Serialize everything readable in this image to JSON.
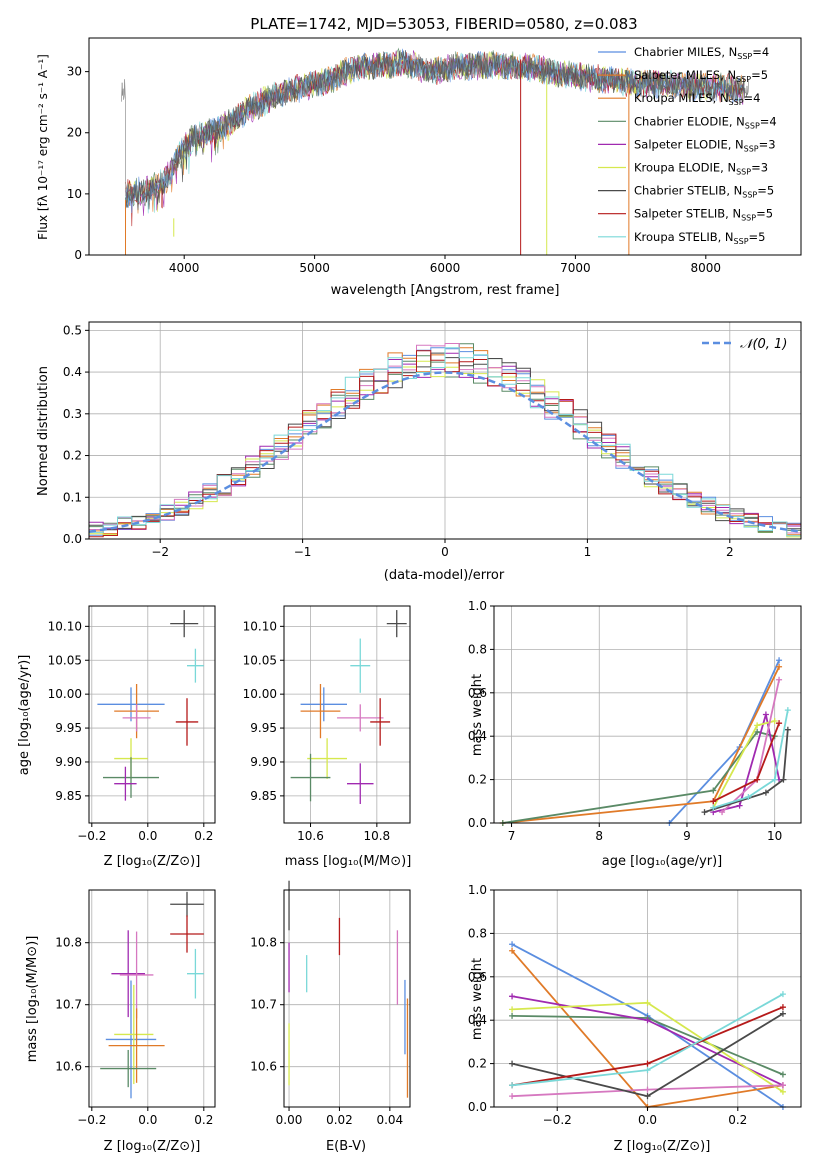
{
  "colors": {
    "c1": "#5b8ee0",
    "c2": "#e07a28",
    "c3": "#5a8a66",
    "c4": "#a02ab0",
    "c5": "#d6e84e",
    "c6": "#d678c0",
    "c7": "#4a4a4a",
    "c8": "#b51a1a",
    "c9": "#7ad8d8",
    "gauss": "#5b8ee0",
    "grid": "#b0b0b0"
  },
  "spectrum": {
    "title": "PLATE=1742, MJD=53053, FIBERID=0580, z=0.083",
    "xlabel": "wavelength [Angstrom, rest frame]",
    "ylabel": "Flux [fλ 10⁻¹⁷ erg cm⁻² s⁻¹ A⁻¹]",
    "xticks": [
      "4000",
      "5000",
      "6000",
      "7000",
      "8000"
    ],
    "yticks": [
      "0",
      "10",
      "20",
      "30"
    ],
    "legend": [
      {
        "name": "Chabrier MILES, N",
        "sub": "SSP",
        "val": "=4",
        "color": "c1"
      },
      {
        "name": "Salpeter MILES, N",
        "sub": "SSP",
        "val": "=5",
        "color": "c2"
      },
      {
        "name": "Kroupa MILES, N",
        "sub": "SSP",
        "val": "=4",
        "color": "c2"
      },
      {
        "name": "Chabrier ELODIE, N",
        "sub": "SSP",
        "val": "=4",
        "color": "c3"
      },
      {
        "name": "Salpeter ELODIE, N",
        "sub": "SSP",
        "val": "=3",
        "color": "c4"
      },
      {
        "name": "Kroupa ELODIE, N",
        "sub": "SSP",
        "val": "=3",
        "color": "c5"
      },
      {
        "name": "Chabrier STELIB, N",
        "sub": "SSP",
        "val": "=5",
        "color": "c7"
      },
      {
        "name": "Salpeter STELIB, N",
        "sub": "SSP",
        "val": "=5",
        "color": "c8"
      },
      {
        "name": "Kroupa STELIB, N",
        "sub": "SSP",
        "val": "=5",
        "color": "c9"
      }
    ]
  },
  "residuals": {
    "xlabel": "(data-model)/error",
    "ylabel": "Normed distribution",
    "xticks": [
      "−2",
      "−1",
      "0",
      "1",
      "2"
    ],
    "yticks": [
      "0.0",
      "0.1",
      "0.2",
      "0.3",
      "0.4",
      "0.5"
    ],
    "legend": "𝒩(0, 1)"
  },
  "panels": {
    "age_label": "age  [log₁₀(age/yr)]",
    "z_label": "Z [log₁₀(Z/Z⊙)]",
    "mass_label": "mass [log₁₀(M/M⊙)]",
    "mass_weight_label": "mass weight",
    "ebv_label": "E(B-V)",
    "age_yticks": [
      "9.85",
      "9.90",
      "9.95",
      "10.00",
      "10.05",
      "10.10"
    ],
    "z_xticks": [
      "−0.2",
      "0.0",
      "0.2"
    ],
    "mass_xticks": [
      "10.6",
      "10.8"
    ],
    "mass_yticks": [
      "10.6",
      "10.7",
      "10.8"
    ],
    "ebv_xticks": [
      "0.00",
      "0.02",
      "0.04"
    ],
    "mw_yticks": [
      "0.0",
      "0.2",
      "0.4",
      "0.6",
      "0.8",
      "1.0"
    ],
    "mw_age_xticks": [
      "7",
      "8",
      "9",
      "10"
    ],
    "mw_z_xticks": [
      "−0.2",
      "0.0",
      "0.2"
    ]
  },
  "chart_data": [
    {
      "type": "line",
      "title": "PLATE=1742, MJD=53053, FIBERID=0580, z=0.083",
      "xlabel": "wavelength [Angstrom, rest frame]",
      "ylabel": "Flux [fλ 10⁻¹⁷ erg cm⁻² s⁻¹ A⁻¹]",
      "xlim": [
        3270,
        8730
      ],
      "ylim": [
        0,
        35.5
      ],
      "envelope": {
        "x": [
          3550,
          3700,
          3850,
          4000,
          4150,
          4300,
          4500,
          4700,
          4900,
          5100,
          5300,
          5500,
          5700,
          5900,
          6100,
          6300,
          6500,
          6700,
          6900,
          7100,
          7300,
          7500,
          7700,
          7900,
          8100,
          8300
        ],
        "y": [
          10,
          10.5,
          12,
          18,
          20,
          21,
          24,
          26,
          27.5,
          28.5,
          30.5,
          31,
          31.5,
          30,
          31,
          31,
          31,
          30.5,
          29.5,
          29,
          28.5,
          28,
          28,
          27.5,
          27.5,
          27
        ]
      },
      "series_names": [
        "Chabrier MILES",
        "Salpeter MILES",
        "Kroupa MILES",
        "Chabrier ELODIE",
        "Salpeter ELODIE",
        "Kroupa ELODIE",
        "Chabrier STELIB",
        "Salpeter STELIB",
        "Kroupa STELIB"
      ],
      "n_ssp": [
        4,
        5,
        4,
        4,
        3,
        3,
        5,
        5,
        5
      ]
    },
    {
      "type": "line",
      "xlabel": "(data-model)/error",
      "ylabel": "Normed distribution",
      "xlim": [
        -2.5,
        2.5
      ],
      "ylim": [
        0,
        0.52
      ],
      "reference": "N(0,1)"
    },
    {
      "type": "scatter",
      "xlabel": "Z [log10(Z/Zsun)]",
      "ylabel": "age [log10(age/yr)]",
      "xlim": [
        -0.21,
        0.24
      ],
      "ylim": [
        9.81,
        10.13
      ],
      "points": [
        {
          "s": "c1",
          "x": -0.06,
          "y": 9.985,
          "xerr": 0.12,
          "yerr": 0.025
        },
        {
          "s": "c2",
          "x": -0.04,
          "y": 9.975,
          "xerr": 0.08,
          "yerr": 0.04
        },
        {
          "s": "c6",
          "x": -0.04,
          "y": 9.965,
          "xerr": 0.05,
          "yerr": 0.02
        },
        {
          "s": "c5",
          "x": -0.06,
          "y": 9.905,
          "xerr": 0.06,
          "yerr": 0.03
        },
        {
          "s": "c3",
          "x": -0.06,
          "y": 9.877,
          "xerr": 0.1,
          "yerr": 0.03
        },
        {
          "s": "c4",
          "x": -0.08,
          "y": 9.868,
          "xerr": 0.04,
          "yerr": 0.025
        },
        {
          "s": "c7",
          "x": 0.13,
          "y": 10.104,
          "xerr": 0.05,
          "yerr": 0.02
        },
        {
          "s": "c9",
          "x": 0.17,
          "y": 10.042,
          "xerr": 0.03,
          "yerr": 0.025
        },
        {
          "s": "c8",
          "x": 0.14,
          "y": 9.959,
          "xerr": 0.04,
          "yerr": 0.035
        }
      ]
    },
    {
      "type": "scatter",
      "xlabel": "mass [log10(M/Msun)]",
      "ylabel": "age [log10(age/yr)]",
      "xlim": [
        10.52,
        10.9
      ],
      "ylim": [
        9.81,
        10.13
      ],
      "points": [
        {
          "s": "c1",
          "x": 10.64,
          "y": 9.985,
          "xerr": 0.07,
          "yerr": 0.025
        },
        {
          "s": "c2",
          "x": 10.63,
          "y": 9.975,
          "xerr": 0.06,
          "yerr": 0.04
        },
        {
          "s": "c6",
          "x": 10.75,
          "y": 9.965,
          "xerr": 0.07,
          "yerr": 0.02
        },
        {
          "s": "c5",
          "x": 10.65,
          "y": 9.905,
          "xerr": 0.06,
          "yerr": 0.03
        },
        {
          "s": "c3",
          "x": 10.6,
          "y": 9.877,
          "xerr": 0.06,
          "yerr": 0.035
        },
        {
          "s": "c4",
          "x": 10.75,
          "y": 9.868,
          "xerr": 0.04,
          "yerr": 0.03
        },
        {
          "s": "c7",
          "x": 10.86,
          "y": 10.104,
          "xerr": 0.03,
          "yerr": 0.02
        },
        {
          "s": "c9",
          "x": 10.75,
          "y": 10.042,
          "xerr": 0.03,
          "yerr": 0.04
        },
        {
          "s": "c8",
          "x": 10.81,
          "y": 9.959,
          "xerr": 0.03,
          "yerr": 0.035
        }
      ]
    },
    {
      "type": "line",
      "xlabel": "age [log10(age/yr)]",
      "ylabel": "mass weight",
      "xlim": [
        6.8,
        10.3
      ],
      "ylim": [
        0,
        1.0
      ],
      "series": [
        {
          "s": "c1",
          "x": [
            8.8,
            9.6,
            10.05
          ],
          "y": [
            0.0,
            0.35,
            0.75
          ]
        },
        {
          "s": "c2",
          "x": [
            6.9,
            9.3,
            10.05
          ],
          "y": [
            0.0,
            0.1,
            0.72
          ]
        },
        {
          "s": "c3",
          "x": [
            6.9,
            9.3,
            9.8,
            10.0
          ],
          "y": [
            0.0,
            0.15,
            0.42,
            0.4
          ]
        },
        {
          "s": "c4",
          "x": [
            9.3,
            9.6,
            9.9,
            10.05
          ],
          "y": [
            0.05,
            0.08,
            0.5,
            0.2
          ]
        },
        {
          "s": "c5",
          "x": [
            9.3,
            9.8,
            10.0
          ],
          "y": [
            0.07,
            0.45,
            0.47
          ]
        },
        {
          "s": "c6",
          "x": [
            9.4,
            9.8,
            10.05
          ],
          "y": [
            0.05,
            0.2,
            0.66
          ]
        },
        {
          "s": "c7",
          "x": [
            9.2,
            9.9,
            10.1,
            10.15
          ],
          "y": [
            0.05,
            0.14,
            0.2,
            0.43
          ]
        },
        {
          "s": "c8",
          "x": [
            9.3,
            9.8,
            10.05
          ],
          "y": [
            0.1,
            0.2,
            0.46
          ]
        },
        {
          "s": "c9",
          "x": [
            9.3,
            9.7,
            10.0,
            10.15
          ],
          "y": [
            0.07,
            0.12,
            0.2,
            0.52
          ]
        }
      ]
    },
    {
      "type": "scatter",
      "xlabel": "Z [log10(Z/Zsun)]",
      "ylabel": "mass [log10(M/Msun)]",
      "xlim": [
        -0.21,
        0.24
      ],
      "ylim": [
        10.535,
        10.885
      ],
      "points": [
        {
          "s": "c7",
          "x": 0.14,
          "y": 10.862,
          "xerr": 0.06,
          "yerr": 0.02
        },
        {
          "s": "c8",
          "x": 0.14,
          "y": 10.814,
          "xerr": 0.06,
          "yerr": 0.03
        },
        {
          "s": "c4",
          "x": -0.07,
          "y": 10.75,
          "xerr": 0.06,
          "yerr": 0.07
        },
        {
          "s": "c6",
          "x": -0.04,
          "y": 10.748,
          "xerr": 0.06,
          "yerr": 0.07
        },
        {
          "s": "c9",
          "x": 0.17,
          "y": 10.75,
          "xerr": 0.03,
          "yerr": 0.04
        },
        {
          "s": "c1",
          "x": -0.06,
          "y": 10.644,
          "xerr": 0.09,
          "yerr": 0.095
        },
        {
          "s": "c5",
          "x": -0.05,
          "y": 10.652,
          "xerr": 0.07,
          "yerr": 0.08
        },
        {
          "s": "c2",
          "x": -0.04,
          "y": 10.634,
          "xerr": 0.1,
          "yerr": 0.06
        },
        {
          "s": "c3",
          "x": -0.07,
          "y": 10.597,
          "xerr": 0.1,
          "yerr": 0.03
        }
      ]
    },
    {
      "type": "scatter",
      "xlabel": "E(B-V)",
      "ylabel": "mass [log10(M/Msun)]",
      "xlim": [
        -0.002,
        0.048
      ],
      "ylim": [
        10.535,
        10.885
      ],
      "points": [
        {
          "s": "c7",
          "x": 0.0,
          "y": 10.86,
          "yerr": 0.04
        },
        {
          "s": "c4",
          "x": 0.0,
          "y": 10.76,
          "yerr": 0.04
        },
        {
          "s": "c5",
          "x": 0.0,
          "y": 10.62,
          "yerr": 0.05
        },
        {
          "s": "c9",
          "x": 0.007,
          "y": 10.75,
          "yerr": 0.03
        },
        {
          "s": "c8",
          "x": 0.02,
          "y": 10.81,
          "yerr": 0.03
        },
        {
          "s": "c6",
          "x": 0.043,
          "y": 10.76,
          "yerr": 0.06
        },
        {
          "s": "c1",
          "x": 0.046,
          "y": 10.68,
          "yerr": 0.06
        },
        {
          "s": "c2",
          "x": 0.047,
          "y": 10.63,
          "yerr": 0.08
        }
      ]
    },
    {
      "type": "line",
      "xlabel": "Z [log10(Z/Zsun)]",
      "ylabel": "mass weight",
      "xlim": [
        -0.34,
        0.34
      ],
      "ylim": [
        0,
        1.0
      ],
      "series": [
        {
          "s": "c1",
          "x": [
            -0.3,
            0.0,
            0.3
          ],
          "y": [
            0.75,
            0.42,
            0.0
          ]
        },
        {
          "s": "c2",
          "x": [
            -0.3,
            0.0,
            0.3
          ],
          "y": [
            0.72,
            0.0,
            0.1
          ]
        },
        {
          "s": "c3",
          "x": [
            -0.3,
            0.0,
            0.3
          ],
          "y": [
            0.42,
            0.41,
            0.15
          ]
        },
        {
          "s": "c4",
          "x": [
            -0.3,
            0.0,
            0.3
          ],
          "y": [
            0.51,
            0.4,
            0.1
          ]
        },
        {
          "s": "c5",
          "x": [
            -0.3,
            0.0,
            0.3
          ],
          "y": [
            0.45,
            0.48,
            0.07
          ]
        },
        {
          "s": "c6",
          "x": [
            -0.3,
            0.0,
            0.3
          ],
          "y": [
            0.05,
            0.08,
            0.1
          ]
        },
        {
          "s": "c7",
          "x": [
            -0.3,
            0.0,
            0.3
          ],
          "y": [
            0.2,
            0.05,
            0.43
          ]
        },
        {
          "s": "c8",
          "x": [
            -0.3,
            0.0,
            0.3
          ],
          "y": [
            0.1,
            0.2,
            0.46
          ]
        },
        {
          "s": "c9",
          "x": [
            -0.3,
            0.0,
            0.3
          ],
          "y": [
            0.1,
            0.17,
            0.52
          ]
        }
      ]
    }
  ]
}
